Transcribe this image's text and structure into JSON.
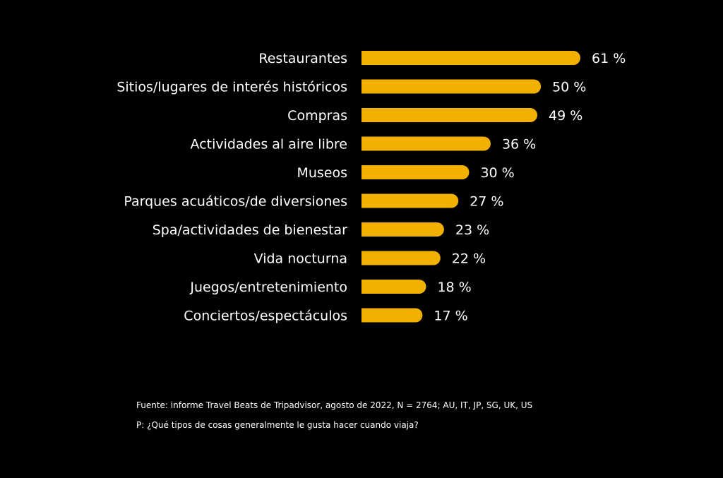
{
  "chart_data": {
    "type": "bar",
    "orientation": "horizontal",
    "categories": [
      "Restaurantes",
      "Sitios/lugares de interés históricos",
      "Compras",
      "Actividades al aire libre",
      "Museos",
      "Parques acuáticos/de diversiones",
      "Spa/actividades de bienestar",
      "Vida nocturna",
      "Juegos/entretenimiento",
      "Conciertos/espectáculos"
    ],
    "values": [
      61,
      50,
      49,
      36,
      30,
      27,
      23,
      22,
      18,
      17
    ],
    "value_labels": [
      "61 %",
      "50 %",
      "49 %",
      "36 %",
      "30 %",
      "27 %",
      "23 %",
      "22 %",
      "18 %",
      "17 %"
    ],
    "bar_color": "#F2B100",
    "background_color": "#000000",
    "text_color": "#FFFFFF",
    "grid": false,
    "legend": "none"
  },
  "notes": {
    "source": "Fuente: informe Travel Beats de Tripadvisor, agosto de 2022, N = 2764; AU, IT, JP, SG, UK, US",
    "question": "P: ¿Qué tipos de cosas generalmente le gusta hacer cuando viaja?"
  }
}
